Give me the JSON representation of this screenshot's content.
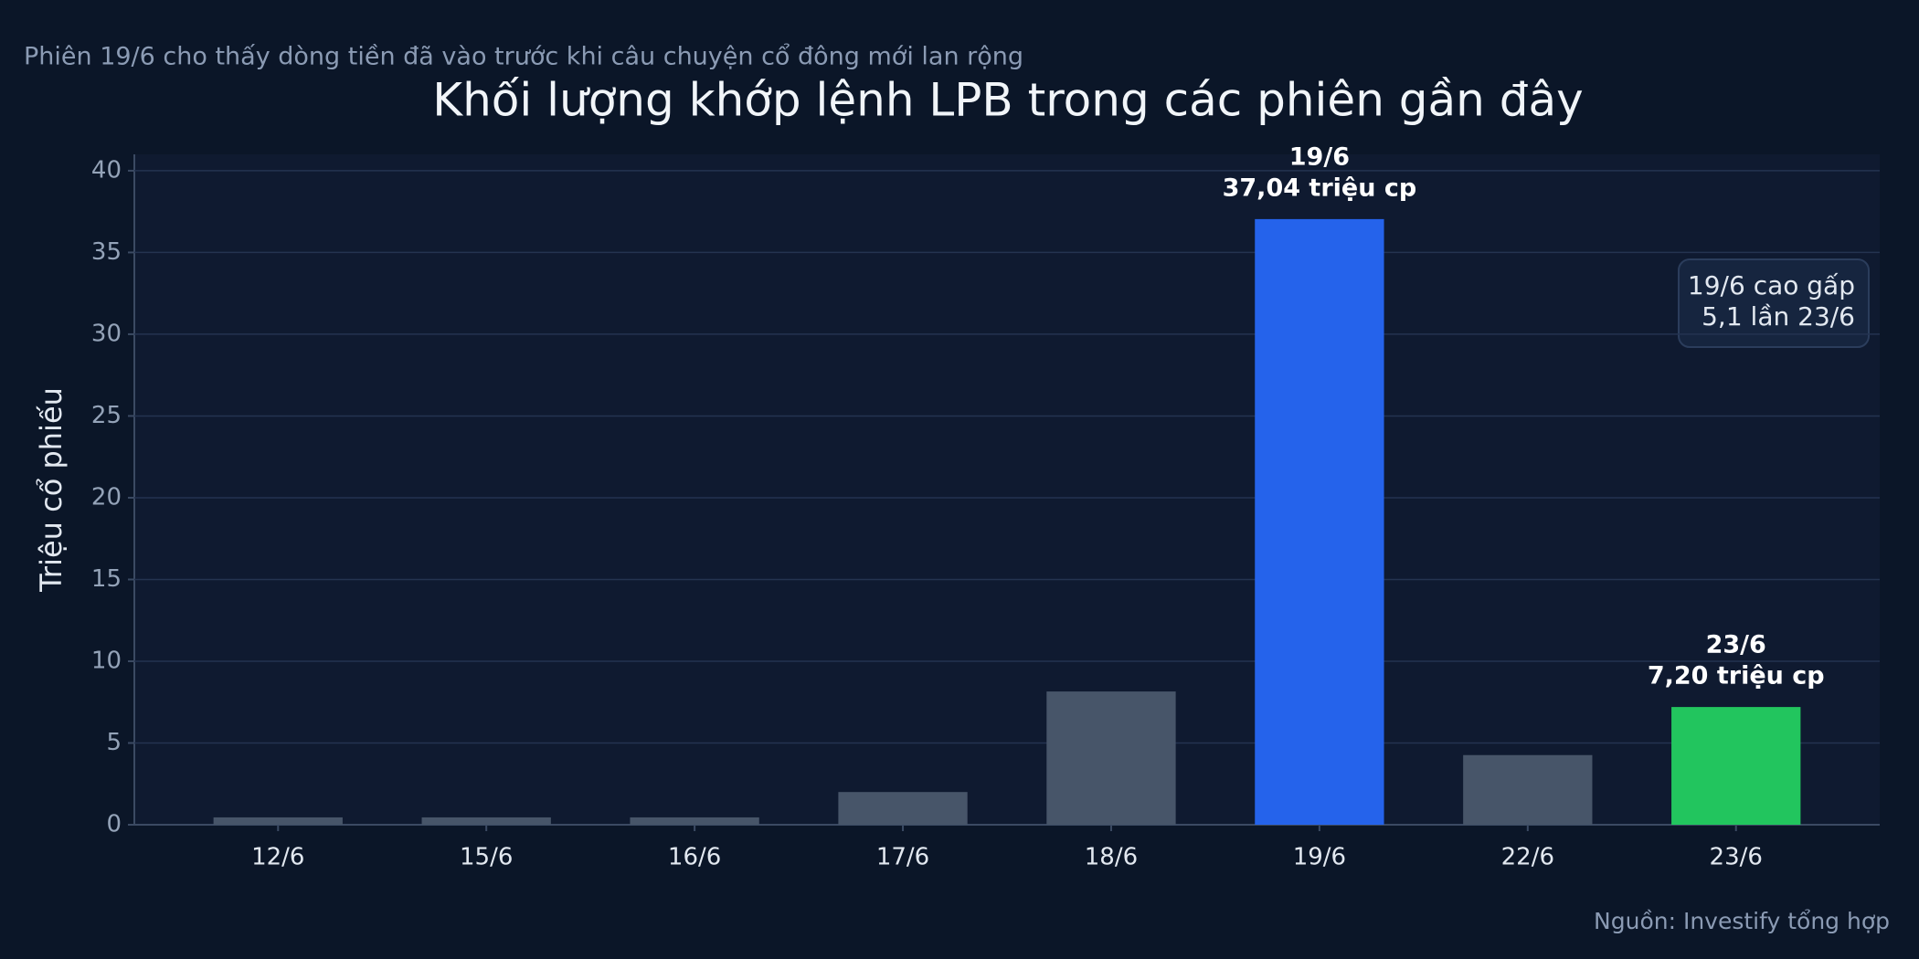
{
  "chart_data": {
    "type": "bar",
    "title": "Khối lượng khớp lệnh LPB trong các phiên gần đây",
    "subtitle": "Phiên 19/6 cho thấy dòng tiền đã vào trước khi câu chuyện cổ đông mới lan rộng",
    "y_label": "Triệu cổ phiếu",
    "source": "Nguồn: Investify tổng hợp",
    "annotation": [
      "19/6 cao gấp",
      "5,1 lần 23/6"
    ],
    "categories": [
      "12/6",
      "15/6",
      "16/6",
      "17/6",
      "18/6",
      "19/6",
      "22/6",
      "23/6"
    ],
    "values": [
      0.45,
      0.45,
      0.45,
      2.0,
      8.15,
      37.04,
      4.26,
      7.2
    ],
    "value_labels": [
      null,
      null,
      null,
      null,
      null,
      "37,04 triệu cp",
      null,
      "7,20 triệu cp"
    ],
    "colors": [
      "#475569",
      "#475569",
      "#475569",
      "#475569",
      "#475569",
      "#2563eb",
      "#475569",
      "#22c55e"
    ],
    "ylim": [
      0,
      41
    ],
    "yticks": [
      0,
      5,
      10,
      15,
      20,
      25,
      30,
      35,
      40
    ],
    "grid": true
  }
}
